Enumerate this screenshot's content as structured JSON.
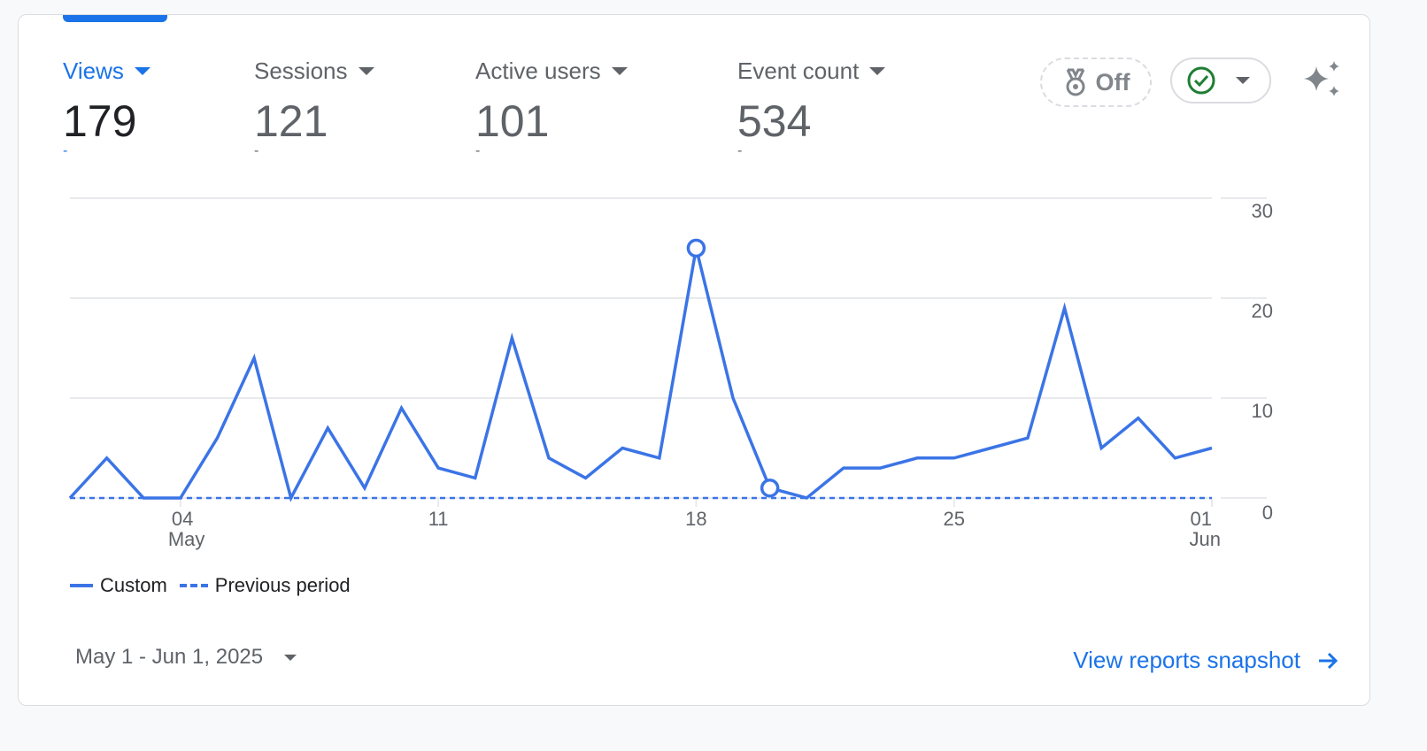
{
  "metrics": [
    {
      "label": "Views",
      "value": "179",
      "change": "-"
    },
    {
      "label": "Sessions",
      "value": "121",
      "change": "-"
    },
    {
      "label": "Active users",
      "value": "101",
      "change": "-"
    },
    {
      "label": "Event count",
      "value": "534",
      "change": "-"
    }
  ],
  "toolbar": {
    "badge_label": "Off"
  },
  "legend": {
    "current": "Custom",
    "previous": "Previous period"
  },
  "footer": {
    "date_range": "May 1 - Jun 1, 2025",
    "view_link": "View reports snapshot"
  },
  "colors": {
    "accent": "#1a73e8",
    "line": "#3b74e6",
    "check": "#1e7e34"
  },
  "chart_data": {
    "type": "line",
    "x": [
      "May 1",
      "May 2",
      "May 3",
      "May 4",
      "May 5",
      "May 6",
      "May 7",
      "May 8",
      "May 9",
      "May 10",
      "May 11",
      "May 12",
      "May 13",
      "May 14",
      "May 15",
      "May 16",
      "May 17",
      "May 18",
      "May 19",
      "May 20",
      "May 21",
      "May 22",
      "May 23",
      "May 24",
      "May 25",
      "May 26",
      "May 27",
      "May 28",
      "May 29",
      "May 30",
      "May 31",
      "Jun 1"
    ],
    "series": [
      {
        "name": "Custom",
        "values": [
          0,
          4,
          0,
          0,
          6,
          14,
          0,
          7,
          1,
          9,
          3,
          2,
          16,
          4,
          2,
          5,
          4,
          25,
          10,
          1,
          0,
          3,
          3,
          4,
          4,
          5,
          6,
          19,
          5,
          8,
          4,
          5
        ]
      },
      {
        "name": "Previous period",
        "values": [
          0,
          0,
          0,
          0,
          0,
          0,
          0,
          0,
          0,
          0,
          0,
          0,
          0,
          0,
          0,
          0,
          0,
          0,
          0,
          0,
          0,
          0,
          0,
          0,
          0,
          0,
          0,
          0,
          0,
          0,
          0,
          0
        ]
      }
    ],
    "highlighted_points": [
      17,
      19
    ],
    "x_ticks": [
      {
        "index": 3,
        "label": "04",
        "sub": "May"
      },
      {
        "index": 10,
        "label": "11",
        "sub": ""
      },
      {
        "index": 17,
        "label": "18",
        "sub": ""
      },
      {
        "index": 24,
        "label": "25",
        "sub": ""
      },
      {
        "index": 31,
        "label": "01",
        "sub": "Jun"
      }
    ],
    "y_ticks": [
      "0",
      "10",
      "20",
      "30"
    ],
    "ylim": [
      0,
      30
    ],
    "grid": true,
    "legend_position": "bottom-left"
  }
}
